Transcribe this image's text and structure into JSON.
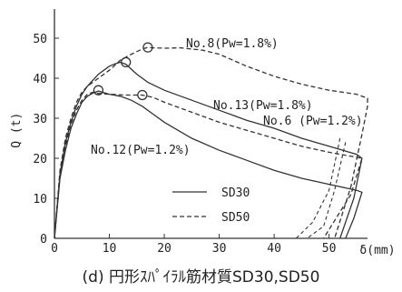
{
  "chart_data": {
    "type": "line",
    "caption": "(d) 円形ｽﾊﾟｲﾗﾙ筋材質SD30,SD50",
    "xlabel": "δ(mm)",
    "ylabel": "Q (t)",
    "xlim": [
      0,
      57
    ],
    "ylim": [
      0,
      55
    ],
    "xticks": [
      0,
      10,
      20,
      30,
      40,
      50
    ],
    "yticks": [
      0,
      10,
      20,
      30,
      40,
      50
    ],
    "legend": {
      "placement": "bottom-center",
      "entries": [
        {
          "label": "SD30",
          "style": "solid"
        },
        {
          "label": "SD50",
          "style": "dashed"
        }
      ]
    },
    "annotations": [
      {
        "text": "No.8(Pw=1.8%)",
        "series": "No.8"
      },
      {
        "text": "No.13(Pw=1.8%)",
        "series": "No.13"
      },
      {
        "text": "No.6 (Pw=1.2%)",
        "series": "No.6"
      },
      {
        "text": "No.12(Pw=1.2%)",
        "series": "No.12"
      }
    ],
    "series": [
      {
        "name": "No.13(Pw=1.8%)",
        "style": "solid",
        "points": [
          [
            0,
            0
          ],
          [
            1,
            16
          ],
          [
            2,
            24
          ],
          [
            3,
            29
          ],
          [
            4,
            33
          ],
          [
            5,
            36
          ],
          [
            6,
            38
          ],
          [
            7,
            39.5
          ],
          [
            8,
            41
          ],
          [
            9,
            42
          ],
          [
            10,
            43
          ],
          [
            11,
            43.6
          ],
          [
            12,
            44
          ],
          [
            13,
            43.5
          ],
          [
            15,
            41
          ],
          [
            17,
            39
          ],
          [
            20,
            37
          ],
          [
            25,
            34.5
          ],
          [
            30,
            32
          ],
          [
            35,
            29.5
          ],
          [
            40,
            27.5
          ],
          [
            45,
            25
          ],
          [
            50,
            23
          ],
          [
            55,
            21
          ],
          [
            56,
            20
          ],
          [
            54.5,
            10
          ],
          [
            52,
            0
          ]
        ]
      },
      {
        "name": "No.12(Pw=1.2%)",
        "style": "solid",
        "points": [
          [
            0,
            0
          ],
          [
            1,
            15
          ],
          [
            2,
            22
          ],
          [
            3,
            27.5
          ],
          [
            4,
            31
          ],
          [
            5,
            34
          ],
          [
            6,
            35.5
          ],
          [
            7,
            36.3
          ],
          [
            8,
            36.8
          ],
          [
            10,
            36
          ],
          [
            12,
            35.5
          ],
          [
            14,
            34.5
          ],
          [
            16,
            33
          ],
          [
            18,
            31
          ],
          [
            20,
            29
          ],
          [
            25,
            25
          ],
          [
            30,
            22
          ],
          [
            35,
            19.5
          ],
          [
            40,
            17
          ],
          [
            45,
            15
          ],
          [
            50,
            13.5
          ],
          [
            55,
            12
          ],
          [
            56,
            11.5
          ],
          [
            54.5,
            5
          ],
          [
            53,
            0
          ]
        ]
      },
      {
        "name": "No.8(Pw=1.8%)",
        "style": "dashed",
        "points": [
          [
            0,
            0
          ],
          [
            1,
            17
          ],
          [
            2,
            25
          ],
          [
            3,
            30
          ],
          [
            4,
            34
          ],
          [
            5,
            36.5
          ],
          [
            6,
            38
          ],
          [
            7,
            39
          ],
          [
            8,
            40
          ],
          [
            10,
            42
          ],
          [
            12,
            44.5
          ],
          [
            14,
            46
          ],
          [
            16,
            47.3
          ],
          [
            17,
            47.7
          ],
          [
            18,
            47.6
          ],
          [
            20,
            47.5
          ],
          [
            23,
            47.6
          ],
          [
            27,
            47
          ],
          [
            30,
            46
          ],
          [
            35,
            43
          ],
          [
            40,
            40.5
          ],
          [
            45,
            38.5
          ],
          [
            50,
            37
          ],
          [
            55,
            36
          ],
          [
            57,
            35
          ],
          [
            57,
            33
          ],
          [
            56,
            26
          ],
          [
            54,
            13
          ],
          [
            51,
            0
          ]
        ]
      },
      {
        "name": "No.6 (Pw=1.2%)",
        "style": "dashed",
        "points": [
          [
            0,
            0
          ],
          [
            1,
            16
          ],
          [
            2,
            23
          ],
          [
            3,
            28.5
          ],
          [
            4,
            32
          ],
          [
            5,
            34.5
          ],
          [
            6,
            36
          ],
          [
            7,
            36.5
          ],
          [
            8,
            36.2
          ],
          [
            10,
            36
          ],
          [
            13,
            35.8
          ],
          [
            16,
            35.8
          ],
          [
            18,
            35.2
          ],
          [
            20,
            34
          ],
          [
            25,
            31.5
          ],
          [
            30,
            29
          ],
          [
            35,
            27
          ],
          [
            40,
            25
          ],
          [
            45,
            23
          ],
          [
            50,
            21.5
          ],
          [
            56,
            20
          ],
          [
            54,
            11
          ],
          [
            49,
            0
          ]
        ]
      }
    ],
    "unloading_dashed": [
      [
        [
          52,
          25
        ],
        [
          50,
          12
        ],
        [
          47,
          4
        ],
        [
          44,
          0
        ]
      ],
      [
        [
          53,
          24
        ],
        [
          51,
          12
        ],
        [
          49,
          3
        ],
        [
          46,
          0
        ]
      ]
    ],
    "peak_markers": [
      [
        8,
        37
      ],
      [
        13,
        44
      ],
      [
        16,
        35.8
      ],
      [
        17,
        47.7
      ]
    ]
  }
}
